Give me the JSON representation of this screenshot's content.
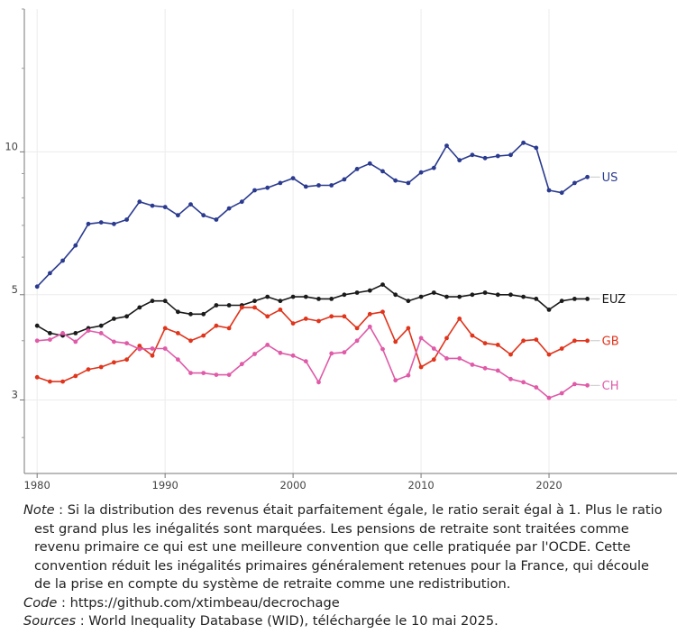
{
  "chart_data": {
    "type": "line",
    "title": "",
    "xlabel": "",
    "ylabel": "",
    "y_scale": "log",
    "xlim": [
      1979,
      2030
    ],
    "ylim": [
      2.1,
      20
    ],
    "x_ticks": [
      1980,
      1990,
      2000,
      2010,
      2020
    ],
    "y_ticks": [
      3,
      5,
      10
    ],
    "y_minor_ticks": [
      2.5,
      4,
      6,
      7,
      8,
      9,
      15,
      20
    ],
    "grid": true,
    "legend": "direct labels at line ends",
    "series": [
      {
        "name": "US",
        "color": "#2a3a8f",
        "x": [
          1980,
          1981,
          1982,
          1983,
          1984,
          1985,
          1986,
          1987,
          1988,
          1989,
          1990,
          1991,
          1992,
          1993,
          1994,
          1995,
          1996,
          1997,
          1998,
          1999,
          2000,
          2001,
          2002,
          2003,
          2004,
          2005,
          2006,
          2007,
          2008,
          2009,
          2010,
          2011,
          2012,
          2013,
          2014,
          2015,
          2016,
          2017,
          2018,
          2019,
          2020,
          2021,
          2022,
          2023
        ],
        "values": [
          5.2,
          5.55,
          5.9,
          6.35,
          7.05,
          7.1,
          7.05,
          7.2,
          7.85,
          7.7,
          7.65,
          7.35,
          7.75,
          7.35,
          7.2,
          7.6,
          7.85,
          8.3,
          8.4,
          8.6,
          8.8,
          8.45,
          8.5,
          8.5,
          8.75,
          9.2,
          9.45,
          9.1,
          8.7,
          8.6,
          9.05,
          9.25,
          10.3,
          9.6,
          9.85,
          9.7,
          9.8,
          9.85,
          10.45,
          10.2,
          8.3,
          8.2,
          8.6,
          8.85
        ]
      },
      {
        "name": "EUZ",
        "color": "#1a1a1a",
        "x": [
          1980,
          1981,
          1982,
          1983,
          1984,
          1985,
          1986,
          1987,
          1988,
          1989,
          1990,
          1991,
          1992,
          1993,
          1994,
          1995,
          1996,
          1997,
          1998,
          1999,
          2000,
          2001,
          2002,
          2003,
          2004,
          2005,
          2006,
          2007,
          2008,
          2009,
          2010,
          2011,
          2012,
          2013,
          2014,
          2015,
          2016,
          2017,
          2018,
          2019,
          2020,
          2021,
          2022,
          2023
        ],
        "values": [
          4.3,
          4.15,
          4.1,
          4.15,
          4.25,
          4.3,
          4.45,
          4.5,
          4.7,
          4.85,
          4.85,
          4.6,
          4.55,
          4.55,
          4.75,
          4.75,
          4.75,
          4.85,
          4.95,
          4.85,
          4.95,
          4.95,
          4.9,
          4.9,
          5.0,
          5.05,
          5.1,
          5.25,
          5.0,
          4.85,
          4.95,
          5.05,
          4.95,
          4.95,
          5.0,
          5.05,
          5.0,
          5.0,
          4.95,
          4.9,
          4.65,
          4.85,
          4.9,
          4.9
        ]
      },
      {
        "name": "GB",
        "color": "#e0341b",
        "x": [
          1980,
          1981,
          1982,
          1983,
          1984,
          1985,
          1986,
          1987,
          1988,
          1989,
          1990,
          1991,
          1992,
          1993,
          1994,
          1995,
          1996,
          1997,
          1998,
          1999,
          2000,
          2001,
          2002,
          2003,
          2004,
          2005,
          2006,
          2007,
          2008,
          2009,
          2010,
          2011,
          2012,
          2013,
          2014,
          2015,
          2016,
          2017,
          2018,
          2019,
          2020,
          2021,
          2022,
          2023
        ],
        "values": [
          3.35,
          3.28,
          3.28,
          3.37,
          3.48,
          3.52,
          3.6,
          3.65,
          3.9,
          3.72,
          4.25,
          4.15,
          4.0,
          4.1,
          4.3,
          4.25,
          4.7,
          4.7,
          4.5,
          4.65,
          4.35,
          4.45,
          4.4,
          4.5,
          4.5,
          4.25,
          4.55,
          4.6,
          3.98,
          4.25,
          3.52,
          3.65,
          4.05,
          4.45,
          4.1,
          3.95,
          3.92,
          3.74,
          4.0,
          4.02,
          3.74,
          3.85,
          4.0,
          4.0
        ]
      },
      {
        "name": "CH",
        "color": "#e05aa8",
        "x": [
          1980,
          1981,
          1982,
          1983,
          1984,
          1985,
          1986,
          1987,
          1988,
          1989,
          1990,
          1991,
          1992,
          1993,
          1994,
          1995,
          1996,
          1997,
          1998,
          1999,
          2000,
          2001,
          2002,
          2003,
          2004,
          2005,
          2006,
          2007,
          2008,
          2009,
          2010,
          2011,
          2012,
          2013,
          2014,
          2015,
          2016,
          2017,
          2018,
          2019,
          2020,
          2021,
          2022,
          2023
        ],
        "values": [
          4.0,
          4.02,
          4.15,
          3.98,
          4.2,
          4.15,
          3.98,
          3.95,
          3.84,
          3.85,
          3.85,
          3.65,
          3.42,
          3.42,
          3.39,
          3.39,
          3.57,
          3.75,
          3.92,
          3.77,
          3.72,
          3.62,
          3.27,
          3.76,
          3.78,
          4.0,
          4.28,
          3.84,
          3.3,
          3.38,
          4.05,
          3.85,
          3.67,
          3.67,
          3.56,
          3.5,
          3.46,
          3.32,
          3.27,
          3.19,
          3.03,
          3.1,
          3.24,
          3.22
        ]
      }
    ]
  },
  "notes": {
    "note_label": "Note",
    "note_text": " : Si la distribution des revenus était parfaitement égale, le ratio serait égal à 1. Plus le ratio est grand plus les inégalités sont marquées. Les pensions de retraite sont traitées comme revenu primaire ce qui est une meilleure convention que celle pratiquée par l'OCDE. Cette convention réduit les inégalités primaires généralement retenues pour la France, qui découle de la prise en compte du système de retraite comme une redistribution.",
    "code_label": "Code",
    "code_text": " : https://github.com/xtimbeau/decrochage",
    "sources_label": "Sources",
    "sources_text": " : World Inequality Database (WID), téléchargée le 10 mai 2025."
  }
}
